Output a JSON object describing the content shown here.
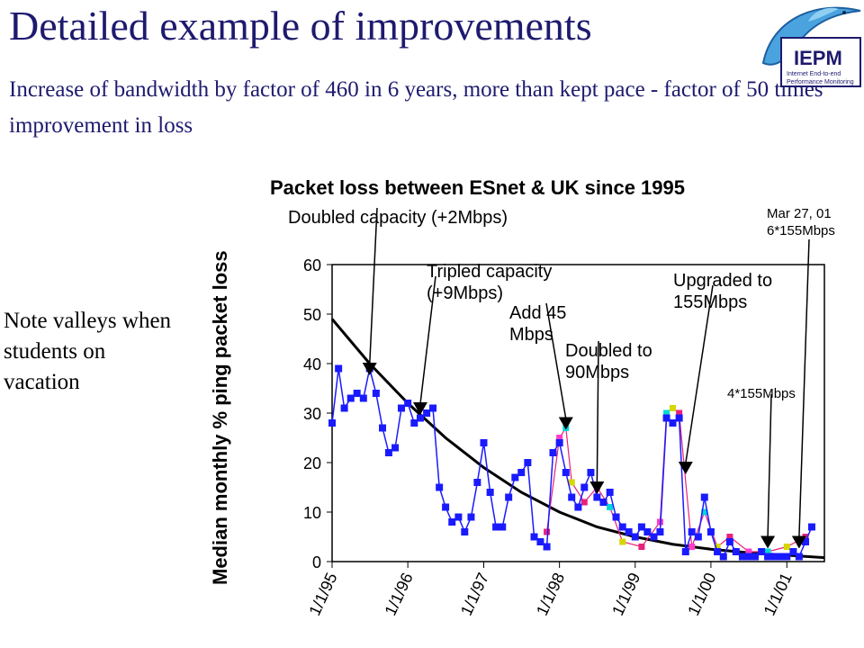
{
  "slide": {
    "title": "Detailed example of improvements",
    "subtitle": "Increase of bandwidth by factor of 460 in 6 years, more than kept pace - factor of 50 times improvement in loss",
    "side_note": "Note valleys when students on vacation"
  },
  "logo": {
    "name": "IEPM",
    "text": "IEPM",
    "caption_line1": "Internet End-to-end",
    "caption_line2": "Performance Monitoring",
    "colors": {
      "dolphin": "#4aa3df",
      "box": "#1e1a6e"
    }
  },
  "chart_data": {
    "type": "line",
    "title": "Packet loss between ESnet & UK since 1995",
    "xlabel": "",
    "ylabel": "Median monthly % ping packet loss",
    "ylim": [
      0,
      60
    ],
    "yticks": [
      "0",
      "10",
      "20",
      "30",
      "40",
      "50",
      "60"
    ],
    "xlim": [
      "1995-01-01",
      "2001-07-01"
    ],
    "xticks": [
      {
        "label": "1/1/95",
        "date": "1995-01-01"
      },
      {
        "label": "1/1/96",
        "date": "1996-01-01"
      },
      {
        "label": "1/1/97",
        "date": "1997-01-01"
      },
      {
        "label": "1/1/98",
        "date": "1998-01-01"
      },
      {
        "label": "1/1/99",
        "date": "1999-01-01"
      },
      {
        "label": "1/1/00",
        "date": "2000-01-01"
      },
      {
        "label": "1/1/01",
        "date": "2001-01-01"
      }
    ],
    "grid": false,
    "colors": {
      "main_series": "#1a1aff",
      "trend": "#000000",
      "accent1": "#e8227a",
      "accent2": "#ff3cc8",
      "accent3": "#00d8d8",
      "accent4": "#d6d600"
    },
    "series": [
      {
        "kind": "main",
        "points": [
          {
            "x": "1995-01-01",
            "y": 28
          },
          {
            "x": "1995-02-01",
            "y": 39
          },
          {
            "x": "1995-03-01",
            "y": 31
          },
          {
            "x": "1995-04-01",
            "y": 33
          },
          {
            "x": "1995-05-01",
            "y": 34
          },
          {
            "x": "1995-06-01",
            "y": 33
          },
          {
            "x": "1995-07-01",
            "y": 39
          },
          {
            "x": "1995-08-01",
            "y": 34
          },
          {
            "x": "1995-09-01",
            "y": 27
          },
          {
            "x": "1995-10-01",
            "y": 22
          },
          {
            "x": "1995-11-01",
            "y": 23
          },
          {
            "x": "1995-12-01",
            "y": 31
          },
          {
            "x": "1996-01-01",
            "y": 32
          },
          {
            "x": "1996-02-01",
            "y": 28
          },
          {
            "x": "1996-03-01",
            "y": 29
          },
          {
            "x": "1996-04-01",
            "y": 30
          },
          {
            "x": "1996-05-01",
            "y": 31
          },
          {
            "x": "1996-06-01",
            "y": 15
          },
          {
            "x": "1996-07-01",
            "y": 11
          },
          {
            "x": "1996-08-01",
            "y": 8
          },
          {
            "x": "1996-09-01",
            "y": 9
          },
          {
            "x": "1996-10-01",
            "y": 6
          },
          {
            "x": "1996-11-01",
            "y": 9
          },
          {
            "x": "1996-12-01",
            "y": 16
          },
          {
            "x": "1997-01-01",
            "y": 24
          },
          {
            "x": "1997-02-01",
            "y": 14
          },
          {
            "x": "1997-03-01",
            "y": 7
          },
          {
            "x": "1997-04-01",
            "y": 7
          },
          {
            "x": "1997-05-01",
            "y": 13
          },
          {
            "x": "1997-06-01",
            "y": 17
          },
          {
            "x": "1997-07-01",
            "y": 18
          },
          {
            "x": "1997-08-01",
            "y": 20
          },
          {
            "x": "1997-09-01",
            "y": 5
          },
          {
            "x": "1997-10-01",
            "y": 4
          },
          {
            "x": "1997-11-01",
            "y": 3
          },
          {
            "x": "1997-12-01",
            "y": 22
          },
          {
            "x": "1998-01-01",
            "y": 24
          },
          {
            "x": "1998-02-01",
            "y": 18
          },
          {
            "x": "1998-03-01",
            "y": 13
          },
          {
            "x": "1998-04-01",
            "y": 11
          },
          {
            "x": "1998-05-01",
            "y": 15
          },
          {
            "x": "1998-06-01",
            "y": 18
          },
          {
            "x": "1998-07-01",
            "y": 13
          },
          {
            "x": "1998-08-01",
            "y": 12
          },
          {
            "x": "1998-09-01",
            "y": 14
          },
          {
            "x": "1998-10-01",
            "y": 9
          },
          {
            "x": "1998-11-01",
            "y": 7
          },
          {
            "x": "1998-12-01",
            "y": 6
          },
          {
            "x": "1999-01-01",
            "y": 5
          },
          {
            "x": "1999-02-01",
            "y": 7
          },
          {
            "x": "1999-03-01",
            "y": 6
          },
          {
            "x": "1999-04-01",
            "y": 5
          },
          {
            "x": "1999-05-01",
            "y": 6
          },
          {
            "x": "1999-06-01",
            "y": 29
          },
          {
            "x": "1999-07-01",
            "y": 28
          },
          {
            "x": "1999-08-01",
            "y": 29
          },
          {
            "x": "1999-09-01",
            "y": 2
          },
          {
            "x": "1999-10-01",
            "y": 6
          },
          {
            "x": "1999-11-01",
            "y": 5
          },
          {
            "x": "1999-12-01",
            "y": 13
          },
          {
            "x": "2000-01-01",
            "y": 6
          },
          {
            "x": "2000-02-01",
            "y": 2
          },
          {
            "x": "2000-03-01",
            "y": 1
          },
          {
            "x": "2000-04-01",
            "y": 4
          },
          {
            "x": "2000-05-01",
            "y": 2
          },
          {
            "x": "2000-06-01",
            "y": 1
          },
          {
            "x": "2000-07-01",
            "y": 1
          },
          {
            "x": "2000-08-01",
            "y": 1
          },
          {
            "x": "2000-09-01",
            "y": 2
          },
          {
            "x": "2000-10-01",
            "y": 1
          },
          {
            "x": "2000-11-01",
            "y": 1
          },
          {
            "x": "2000-12-01",
            "y": 1
          },
          {
            "x": "2001-01-01",
            "y": 1
          },
          {
            "x": "2001-02-01",
            "y": 2
          },
          {
            "x": "2001-03-01",
            "y": 1
          },
          {
            "x": "2001-04-01",
            "y": 4
          },
          {
            "x": "2001-05-01",
            "y": 7
          }
        ]
      },
      {
        "kind": "accent",
        "points": [
          {
            "x": "1997-11-01",
            "y": 6
          },
          {
            "x": "1998-01-01",
            "y": 25
          },
          {
            "x": "1998-02-01",
            "y": 27
          },
          {
            "x": "1998-03-01",
            "y": 16
          },
          {
            "x": "1998-05-01",
            "y": 12
          },
          {
            "x": "1998-07-01",
            "y": 15
          },
          {
            "x": "1998-09-01",
            "y": 11
          },
          {
            "x": "1998-11-01",
            "y": 4
          },
          {
            "x": "1999-02-01",
            "y": 3
          },
          {
            "x": "1999-05-01",
            "y": 8
          },
          {
            "x": "1999-06-01",
            "y": 30
          },
          {
            "x": "1999-07-01",
            "y": 31
          },
          {
            "x": "1999-08-01",
            "y": 30
          },
          {
            "x": "1999-10-01",
            "y": 3
          },
          {
            "x": "1999-12-01",
            "y": 10
          },
          {
            "x": "2000-02-01",
            "y": 3
          },
          {
            "x": "2000-04-01",
            "y": 5
          },
          {
            "x": "2000-07-01",
            "y": 2
          },
          {
            "x": "2000-10-01",
            "y": 2
          },
          {
            "x": "2001-01-01",
            "y": 3
          },
          {
            "x": "2001-04-01",
            "y": 5
          }
        ]
      },
      {
        "kind": "trend",
        "points": [
          {
            "x": "1995-01-01",
            "y": 49
          },
          {
            "x": "1995-07-01",
            "y": 40
          },
          {
            "x": "1996-01-01",
            "y": 32
          },
          {
            "x": "1996-07-01",
            "y": 25
          },
          {
            "x": "1997-01-01",
            "y": 19
          },
          {
            "x": "1997-07-01",
            "y": 14
          },
          {
            "x": "1998-01-01",
            "y": 10
          },
          {
            "x": "1998-07-01",
            "y": 7
          },
          {
            "x": "1999-01-01",
            "y": 5
          },
          {
            "x": "1999-07-01",
            "y": 3.5
          },
          {
            "x": "2000-01-01",
            "y": 2.5
          },
          {
            "x": "2000-07-01",
            "y": 1.8
          },
          {
            "x": "2001-01-01",
            "y": 1.3
          },
          {
            "x": "2001-07-01",
            "y": 0.8
          }
        ]
      }
    ],
    "annotations": [
      {
        "lines": [
          "Doubled capacity (+2Mbps)"
        ],
        "arrow_to": {
          "x": "1995-07-01",
          "y": 38
        }
      },
      {
        "lines": [
          "Tripled capacity",
          "(+9Mbps)"
        ],
        "arrow_to": {
          "x": "1996-03-01",
          "y": 30
        }
      },
      {
        "lines": [
          "Add 45",
          "Mbps"
        ],
        "arrow_to": {
          "x": "1998-02-01",
          "y": 27
        }
      },
      {
        "lines": [
          "Doubled to",
          "90Mbps"
        ],
        "arrow_to": {
          "x": "1998-07-01",
          "y": 14
        }
      },
      {
        "lines": [
          "Upgraded to",
          "155Mbps"
        ],
        "arrow_to": {
          "x": "1999-09-01",
          "y": 18
        }
      },
      {
        "lines": [
          "4*155Mbps"
        ],
        "arrow_to": {
          "x": "2000-10-01",
          "y": 3
        }
      },
      {
        "lines": [
          "Mar 27, 01",
          "6*155Mbps"
        ],
        "arrow_to": {
          "x": "2001-03-01",
          "y": 3
        }
      }
    ]
  }
}
